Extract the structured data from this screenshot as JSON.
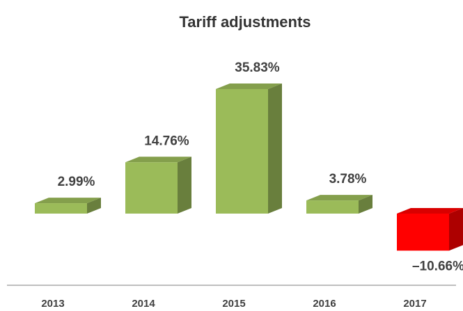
{
  "chart_data": {
    "type": "bar3d",
    "title": "Tariff adjustments",
    "categories": [
      "2013",
      "2014",
      "2015",
      "2016",
      "2017"
    ],
    "values": [
      2.99,
      14.76,
      35.83,
      3.78,
      -10.66
    ],
    "value_labels": [
      "2.99%",
      "14.76%",
      "35.83%",
      "3.78%",
      "–10.66%"
    ],
    "colors": [
      "#9bbb59",
      "#9bbb59",
      "#9bbb59",
      "#9bbb59",
      "#ff0000"
    ]
  }
}
